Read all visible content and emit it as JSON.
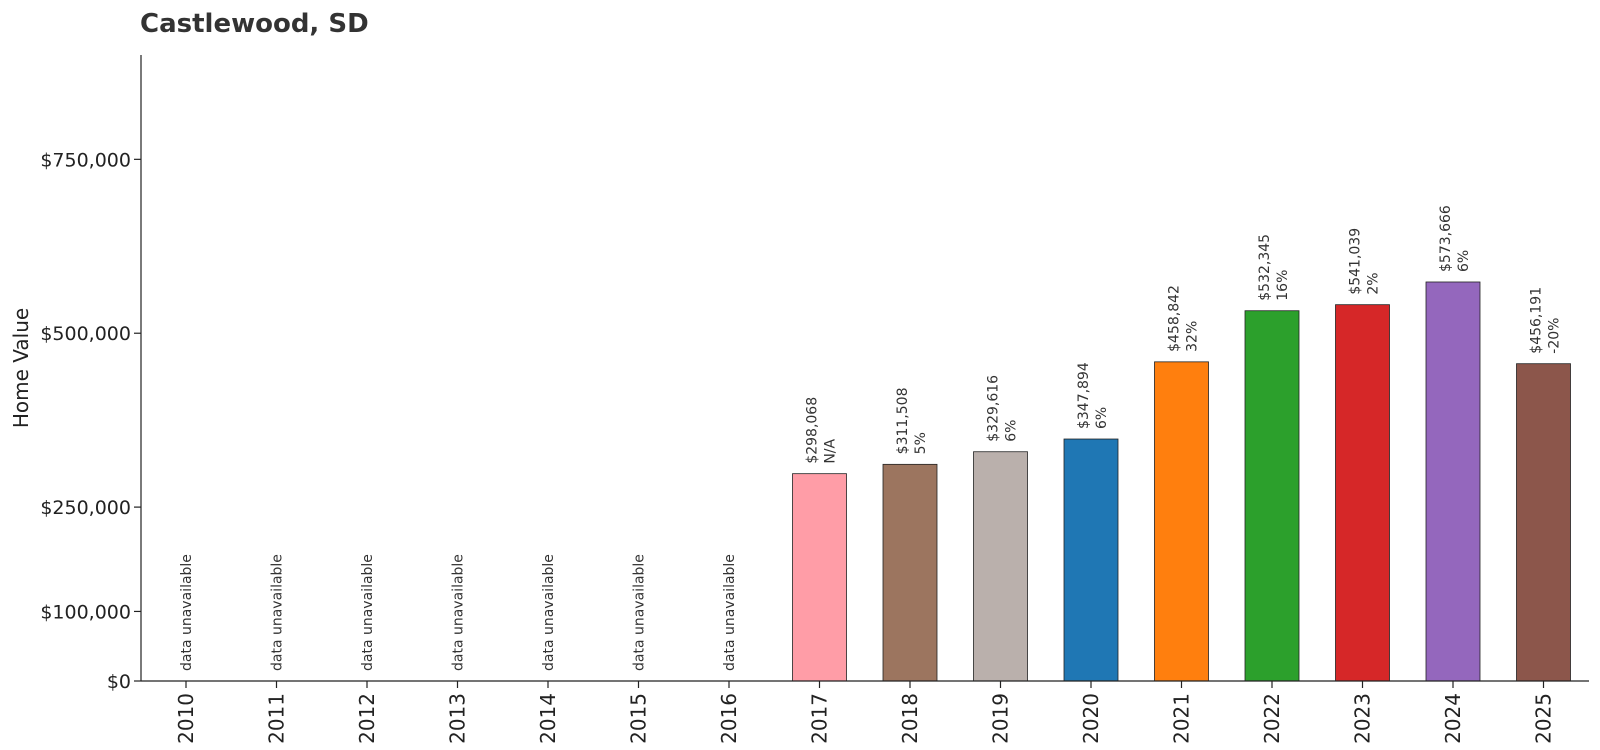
{
  "chart_data": {
    "type": "bar",
    "title": "Castlewood, SD",
    "xlabel": "",
    "ylabel": "Home Value",
    "ylim": [
      0,
      900000
    ],
    "yticks": [
      0,
      100000,
      250000,
      500000,
      750000
    ],
    "ytick_labels": [
      "$0",
      "$100,000",
      "$250,000",
      "$500,000",
      "$750,000"
    ],
    "grid": false,
    "legend": "none",
    "categories": [
      "2010",
      "2011",
      "2012",
      "2013",
      "2014",
      "2015",
      "2016",
      "2017",
      "2018",
      "2019",
      "2020",
      "2021",
      "2022",
      "2023",
      "2024",
      "2025"
    ],
    "values": [
      null,
      null,
      null,
      null,
      null,
      null,
      null,
      298068,
      311508,
      329616,
      347894,
      458842,
      532345,
      541039,
      573666,
      456191
    ],
    "value_labels": [
      "",
      "",
      "",
      "",
      "",
      "",
      "",
      "$298,068",
      "$311,508",
      "$329,616",
      "$347,894",
      "$458,842",
      "$532,345",
      "$541,039",
      "$573,666",
      "$456,191"
    ],
    "change_labels": [
      "",
      "",
      "",
      "",
      "",
      "",
      "",
      "N/A",
      "5%",
      "6%",
      "6%",
      "32%",
      "16%",
      "2%",
      "6%",
      "-20%"
    ],
    "unavailable_label": "data unavailable",
    "colors": [
      "",
      "",
      "",
      "",
      "",
      "",
      "",
      "#ff9da7",
      "#9c755f",
      "#bab0ac",
      "#1f77b4",
      "#ff7f0e",
      "#2ca02c",
      "#d62728",
      "#9467bd",
      "#8c564b"
    ]
  }
}
